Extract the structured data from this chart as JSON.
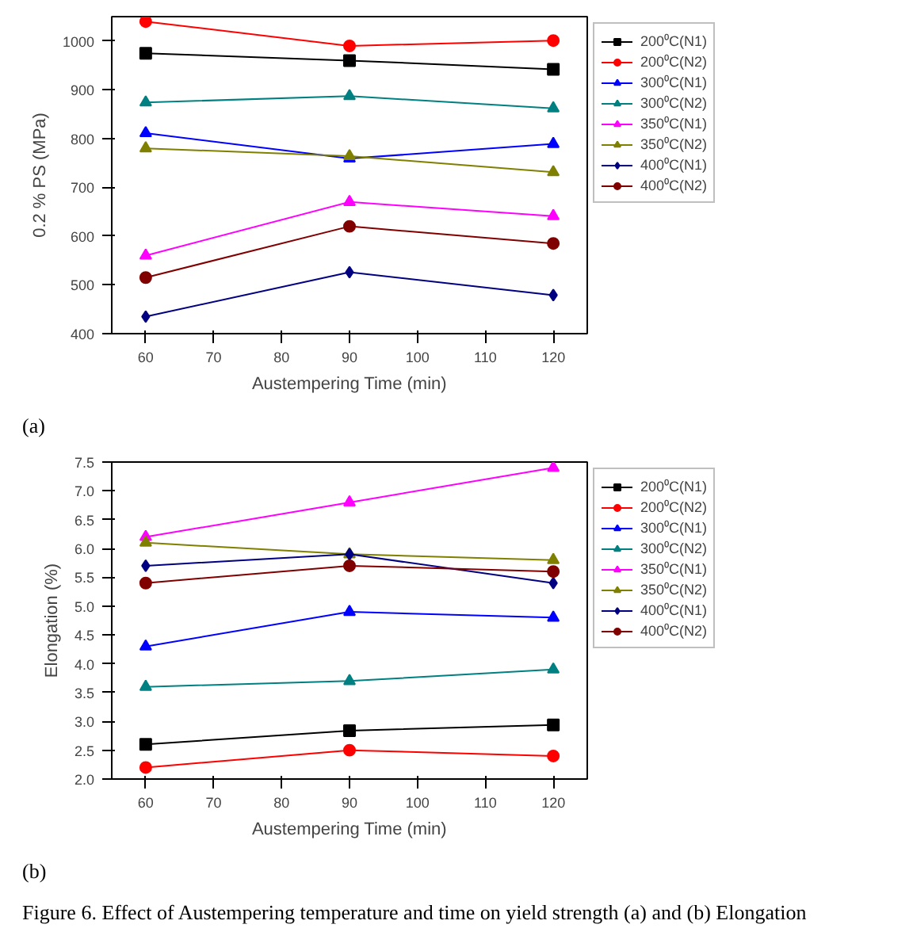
{
  "chart_data": [
    {
      "type": "line",
      "xlabel": "Austempering Time (min)",
      "ylabel": "0.2 % PS (MPa)",
      "x": [
        60,
        90,
        120
      ],
      "xlim": [
        55,
        125
      ],
      "xticks": [
        60,
        70,
        80,
        90,
        100,
        110,
        120
      ],
      "ylim": [
        400,
        1050
      ],
      "yticks": [
        400,
        500,
        600,
        700,
        800,
        900,
        1000
      ],
      "grid": false,
      "legend": "top right",
      "annotations": [
        "(a)"
      ],
      "series": [
        {
          "name": "200⁰C(N1)",
          "color": "#000000",
          "marker": "square",
          "values": [
            975,
            960,
            942
          ]
        },
        {
          "name": "200⁰C(N2)",
          "color": "#ff0000",
          "marker": "circle",
          "values": [
            1040,
            990,
            1001
          ]
        },
        {
          "name": "300⁰C(N1)",
          "color": "#0000ff",
          "marker": "triangle",
          "values": [
            811,
            759,
            789
          ]
        },
        {
          "name": "300⁰C(N2)",
          "color": "#008080",
          "marker": "triangle",
          "values": [
            874,
            887,
            862
          ]
        },
        {
          "name": "350⁰C(N1)",
          "color": "#ff00ff",
          "marker": "triangle",
          "values": [
            560,
            670,
            641
          ]
        },
        {
          "name": "350⁰C(N2)",
          "color": "#808000",
          "marker": "triangle",
          "values": [
            780,
            764,
            731
          ]
        },
        {
          "name": "400⁰C(N1)",
          "color": "#000080",
          "marker": "diamond",
          "values": [
            435,
            526,
            479
          ]
        },
        {
          "name": "400⁰C(N2)",
          "color": "#800000",
          "marker": "circle",
          "values": [
            515,
            620,
            585
          ]
        }
      ]
    },
    {
      "type": "line",
      "xlabel": "Austempering Time (min)",
      "ylabel": "Elongation (%)",
      "x": [
        60,
        90,
        120
      ],
      "xlim": [
        55,
        125
      ],
      "xticks": [
        60,
        70,
        80,
        90,
        100,
        110,
        120
      ],
      "ylim": [
        2.0,
        7.5
      ],
      "yticks": [
        {
          "value": 2.0,
          "label": "2.0"
        },
        {
          "value": 2.5,
          "label": "2.5"
        },
        {
          "value": 3.0,
          "label": "3.0"
        },
        {
          "value": 3.5,
          "label": "3.5"
        },
        {
          "value": 4.0,
          "label": "4.0"
        },
        {
          "value": 4.5,
          "label": "4.5"
        },
        {
          "value": 5.0,
          "label": "5.0"
        },
        {
          "value": 5.5,
          "label": "5.5"
        },
        {
          "value": 6.0,
          "label": "6.0"
        },
        {
          "value": 6.5,
          "label": "6.5"
        },
        {
          "value": 7.0,
          "label": "7.0"
        },
        {
          "value": 7.5,
          "label": "7.5"
        }
      ],
      "grid": false,
      "legend": "top right",
      "annotations": [
        "(b)",
        "Figure 6. Effect of Austempering temperature and time on yield strength (a) and (b) Elongation"
      ],
      "series": [
        {
          "name": "200⁰C(N1)",
          "color": "#000000",
          "marker": "square",
          "values": [
            2.6,
            2.84,
            2.94
          ]
        },
        {
          "name": "200⁰C(N2)",
          "color": "#ff0000",
          "marker": "circle",
          "values": [
            2.2,
            2.5,
            2.4
          ]
        },
        {
          "name": "300⁰C(N1)",
          "color": "#0000ff",
          "marker": "triangle",
          "values": [
            4.3,
            4.9,
            4.8
          ]
        },
        {
          "name": "300⁰C(N2)",
          "color": "#008080",
          "marker": "triangle",
          "values": [
            3.6,
            3.7,
            3.9
          ]
        },
        {
          "name": "350⁰C(N1)",
          "color": "#ff00ff",
          "marker": "triangle",
          "values": [
            6.2,
            6.8,
            7.4
          ]
        },
        {
          "name": "350⁰C(N2)",
          "color": "#808000",
          "marker": "triangle",
          "values": [
            6.1,
            5.9,
            5.8
          ]
        },
        {
          "name": "400⁰C(N1)",
          "color": "#000080",
          "marker": "diamond",
          "values": [
            5.7,
            5.9,
            5.4
          ]
        },
        {
          "name": "400⁰C(N2)",
          "color": "#800000",
          "marker": "circle",
          "values": [
            5.4,
            5.7,
            5.6
          ]
        }
      ]
    }
  ]
}
